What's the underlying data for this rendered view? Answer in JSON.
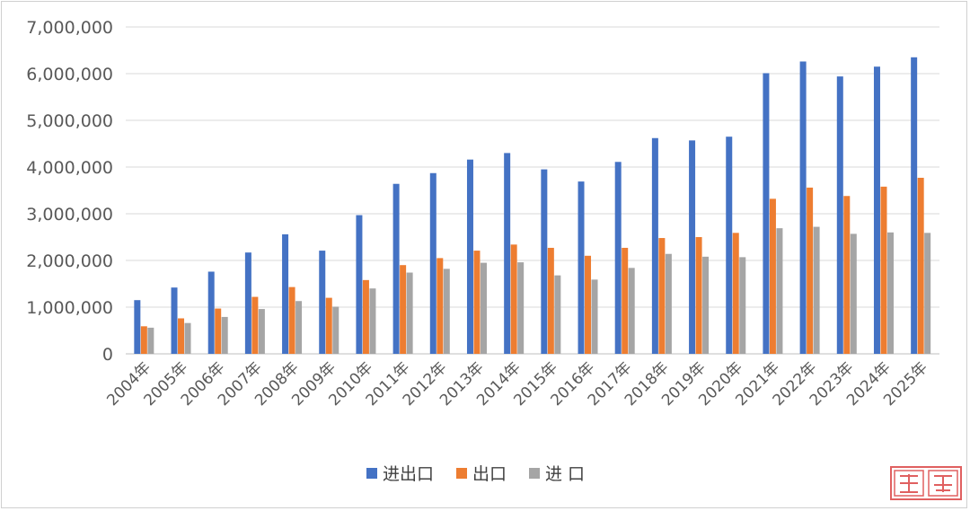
{
  "chart_data": {
    "type": "bar",
    "categories": [
      "2004年",
      "2005年",
      "2006年",
      "2007年",
      "2008年",
      "2009年",
      "2010年",
      "2011年",
      "2012年",
      "2013年",
      "2014年",
      "2015年",
      "2016年",
      "2017年",
      "2018年",
      "2019年",
      "2020年",
      "2021年",
      "2022年",
      "2023年",
      "2024年",
      "2025年"
    ],
    "series": [
      {
        "name": "进出口",
        "color": "#4472C4",
        "values": [
          1150000,
          1420000,
          1760000,
          2170000,
          2560000,
          2210000,
          2970000,
          3640000,
          3870000,
          4160000,
          4300000,
          3950000,
          3690000,
          4110000,
          4620000,
          4570000,
          4650000,
          6010000,
          6260000,
          5940000,
          6150000,
          6350000
        ]
      },
      {
        "name": "出口",
        "color": "#ED7D31",
        "values": [
          590000,
          760000,
          970000,
          1220000,
          1430000,
          1200000,
          1580000,
          1900000,
          2050000,
          2210000,
          2340000,
          2270000,
          2100000,
          2270000,
          2480000,
          2500000,
          2590000,
          3320000,
          3560000,
          3380000,
          3580000,
          3770000
        ]
      },
      {
        "name": "进 口",
        "color": "#A5A5A5",
        "values": [
          560000,
          660000,
          790000,
          960000,
          1130000,
          1010000,
          1400000,
          1740000,
          1820000,
          1950000,
          1960000,
          1680000,
          1590000,
          1840000,
          2140000,
          2080000,
          2070000,
          2690000,
          2720000,
          2570000,
          2600000,
          2590000
        ]
      }
    ],
    "yticks": [
      "0",
      "1,000,000",
      "2,000,000",
      "3,000,000",
      "4,000,000",
      "5,000,000",
      "6,000,000",
      "7,000,000"
    ],
    "ylim": [
      0,
      7000000
    ],
    "grid": true,
    "legend_position": "bottom-center"
  }
}
